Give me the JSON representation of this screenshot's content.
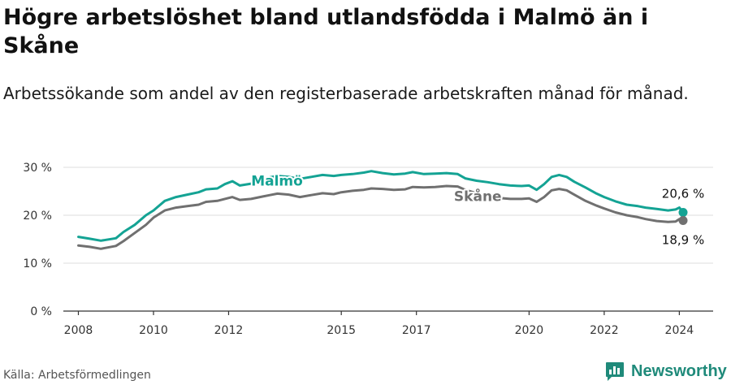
{
  "title": "Högre arbetslöshet bland utlandsfödda i Malmö än i Skåne",
  "subtitle": "Arbetssökande som andel av den registerbaserade arbetskraften månad för månad.",
  "source": "Källa: Arbetsförmedlingen",
  "brand": {
    "name": "Newsworthy",
    "icon": "newsworthy-logo-icon"
  },
  "colors": {
    "malmo": "#14a394",
    "skane": "#707070",
    "grid": "#dddddd",
    "axis": "#333333"
  },
  "chart_data": {
    "type": "line",
    "title": "Högre arbetslöshet bland utlandsfödda i Malmö än i Skåne",
    "subtitle": "Arbetssökande som andel av den registerbaserade arbetskraften månad för månad.",
    "xlabel": "",
    "ylabel": "",
    "xlim": [
      2007.6,
      2024.9
    ],
    "ylim": [
      0,
      30
    ],
    "grid": true,
    "y_ticks": [
      {
        "value": 0,
        "label": "0 %"
      },
      {
        "value": 10,
        "label": "10 %"
      },
      {
        "value": 20,
        "label": "20 %"
      },
      {
        "value": 30,
        "label": "30 %"
      }
    ],
    "x_ticks": [
      {
        "value": 2008,
        "label": "2008"
      },
      {
        "value": 2010,
        "label": "2010"
      },
      {
        "value": 2012,
        "label": "2012"
      },
      {
        "value": 2015,
        "label": "2015"
      },
      {
        "value": 2017,
        "label": "2017"
      },
      {
        "value": 2020,
        "label": "2020"
      },
      {
        "value": 2022,
        "label": "2022"
      },
      {
        "value": 2024,
        "label": "2024"
      }
    ],
    "series": [
      {
        "name": "Malmö",
        "color": "#14a394",
        "last_value_label": "20,6 %",
        "x": [
          2008.0,
          2008.3,
          2008.6,
          2009.0,
          2009.2,
          2009.5,
          2009.8,
          2010.0,
          2010.3,
          2010.6,
          2010.9,
          2011.2,
          2011.4,
          2011.7,
          2011.9,
          2012.1,
          2012.3,
          2012.6,
          2012.9,
          2013.1,
          2013.3,
          2013.6,
          2013.9,
          2014.2,
          2014.5,
          2014.8,
          2015.0,
          2015.3,
          2015.6,
          2015.8,
          2016.1,
          2016.4,
          2016.7,
          2016.9,
          2017.2,
          2017.5,
          2017.8,
          2018.1,
          2018.3,
          2018.6,
          2018.9,
          2019.2,
          2019.5,
          2019.8,
          2020.0,
          2020.2,
          2020.4,
          2020.6,
          2020.8,
          2021.0,
          2021.2,
          2021.5,
          2021.8,
          2022.0,
          2022.3,
          2022.6,
          2022.9,
          2023.1,
          2023.4,
          2023.7,
          2023.9,
          2024.0,
          2024.1
        ],
        "values": [
          15.5,
          15.1,
          14.7,
          15.2,
          16.5,
          18.0,
          20.0,
          21.0,
          23.0,
          23.8,
          24.3,
          24.8,
          25.4,
          25.6,
          26.5,
          27.1,
          26.2,
          26.6,
          27.3,
          27.9,
          28.2,
          28.0,
          27.6,
          28.0,
          28.4,
          28.2,
          28.4,
          28.6,
          28.9,
          29.2,
          28.8,
          28.5,
          28.7,
          29.0,
          28.6,
          28.7,
          28.8,
          28.6,
          27.7,
          27.2,
          26.9,
          26.5,
          26.2,
          26.1,
          26.2,
          25.3,
          26.5,
          28.0,
          28.4,
          28.0,
          27.0,
          25.8,
          24.5,
          23.8,
          22.9,
          22.2,
          21.9,
          21.6,
          21.3,
          21.0,
          21.2,
          21.6,
          20.6
        ]
      },
      {
        "name": "Skåne",
        "color": "#707070",
        "last_value_label": "18,9 %",
        "x": [
          2008.0,
          2008.3,
          2008.6,
          2009.0,
          2009.2,
          2009.5,
          2009.8,
          2010.0,
          2010.3,
          2010.6,
          2010.9,
          2011.2,
          2011.4,
          2011.7,
          2011.9,
          2012.1,
          2012.3,
          2012.6,
          2012.9,
          2013.1,
          2013.3,
          2013.6,
          2013.9,
          2014.2,
          2014.5,
          2014.8,
          2015.0,
          2015.3,
          2015.6,
          2015.8,
          2016.1,
          2016.4,
          2016.7,
          2016.9,
          2017.2,
          2017.5,
          2017.8,
          2018.1,
          2018.3,
          2018.6,
          2018.9,
          2019.2,
          2019.5,
          2019.8,
          2020.0,
          2020.2,
          2020.4,
          2020.6,
          2020.8,
          2021.0,
          2021.2,
          2021.5,
          2021.8,
          2022.0,
          2022.3,
          2022.6,
          2022.9,
          2023.1,
          2023.4,
          2023.7,
          2023.9,
          2024.0,
          2024.1
        ],
        "values": [
          13.7,
          13.4,
          13.0,
          13.6,
          14.6,
          16.3,
          18.0,
          19.5,
          21.0,
          21.6,
          21.9,
          22.2,
          22.8,
          23.0,
          23.4,
          23.8,
          23.2,
          23.4,
          23.9,
          24.2,
          24.5,
          24.3,
          23.8,
          24.2,
          24.6,
          24.4,
          24.8,
          25.1,
          25.3,
          25.6,
          25.5,
          25.3,
          25.4,
          25.9,
          25.8,
          25.9,
          26.1,
          26.0,
          25.3,
          24.6,
          24.0,
          23.6,
          23.4,
          23.4,
          23.5,
          22.8,
          23.8,
          25.2,
          25.5,
          25.2,
          24.3,
          23.0,
          22.0,
          21.4,
          20.6,
          20.0,
          19.6,
          19.2,
          18.8,
          18.6,
          18.7,
          19.2,
          18.9
        ]
      }
    ]
  }
}
